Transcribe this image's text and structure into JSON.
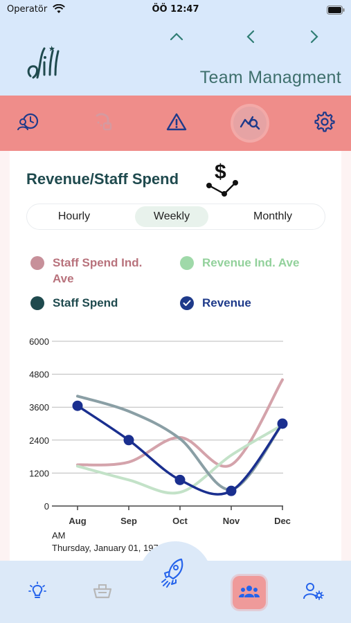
{
  "status_bar": {
    "carrier": "Operatör",
    "time": "ÖÖ 12:47"
  },
  "header": {
    "title": "Team Managment",
    "logo_text": "Lill"
  },
  "toolbar": {
    "items": [
      {
        "icon": "staff-history-icon",
        "active": false
      },
      {
        "icon": "cleaning-icon",
        "active": false
      },
      {
        "icon": "warning-icon",
        "active": false
      },
      {
        "icon": "chart-search-icon",
        "active": true
      },
      {
        "icon": "gear-icon",
        "active": false
      }
    ]
  },
  "card": {
    "title": "Revenue/Staff Spend",
    "icon": "dollar-flow-icon",
    "segments": [
      "Hourly",
      "Weekly",
      "Monthly"
    ],
    "selected_segment": "Weekly",
    "legend": [
      {
        "label": "Staff Spend Ind. Ave",
        "color": "#b8727c",
        "checked": false
      },
      {
        "label": "Revenue Ind. Ave",
        "color": "#8fd19a",
        "checked": false
      },
      {
        "label": "Staff Spend",
        "color": "#1f4a4e",
        "checked": false
      },
      {
        "label": "Revenue",
        "color": "#1e3a8a",
        "checked": true
      }
    ],
    "footer_ampm": "AM",
    "footer_date": "Thursday, January 01, 1970"
  },
  "chart_data": {
    "type": "line",
    "categories": [
      "Aug",
      "Sep",
      "Oct",
      "Nov",
      "Dec"
    ],
    "y_ticks": [
      "6000",
      "4800",
      "3600",
      "2400",
      "1200",
      "0"
    ],
    "ylim": [
      0,
      6000
    ],
    "grid": true,
    "series": [
      {
        "name": "Staff Spend Ind. Ave",
        "color": "#d4a3ab",
        "values": [
          1500,
          1600,
          2500,
          1500,
          4600
        ]
      },
      {
        "name": "Revenue Ind. Ave",
        "color": "#c3e2c8",
        "values": [
          1450,
          950,
          500,
          1850,
          2950
        ]
      },
      {
        "name": "Staff Spend",
        "color": "#8a9fa5",
        "values": [
          4000,
          3450,
          2450,
          600,
          3000
        ]
      },
      {
        "name": "Revenue",
        "color": "#1a2f8f",
        "values": [
          3650,
          2400,
          950,
          550,
          3000
        ]
      }
    ]
  },
  "bottom_nav": {
    "items": [
      {
        "icon": "lightbulb-icon",
        "active": false
      },
      {
        "icon": "cart-icon",
        "active": false
      },
      {
        "icon": "rocket-icon",
        "active": false
      },
      {
        "icon": "team-icon",
        "active": true
      },
      {
        "icon": "user-settings-icon",
        "active": false
      }
    ]
  }
}
